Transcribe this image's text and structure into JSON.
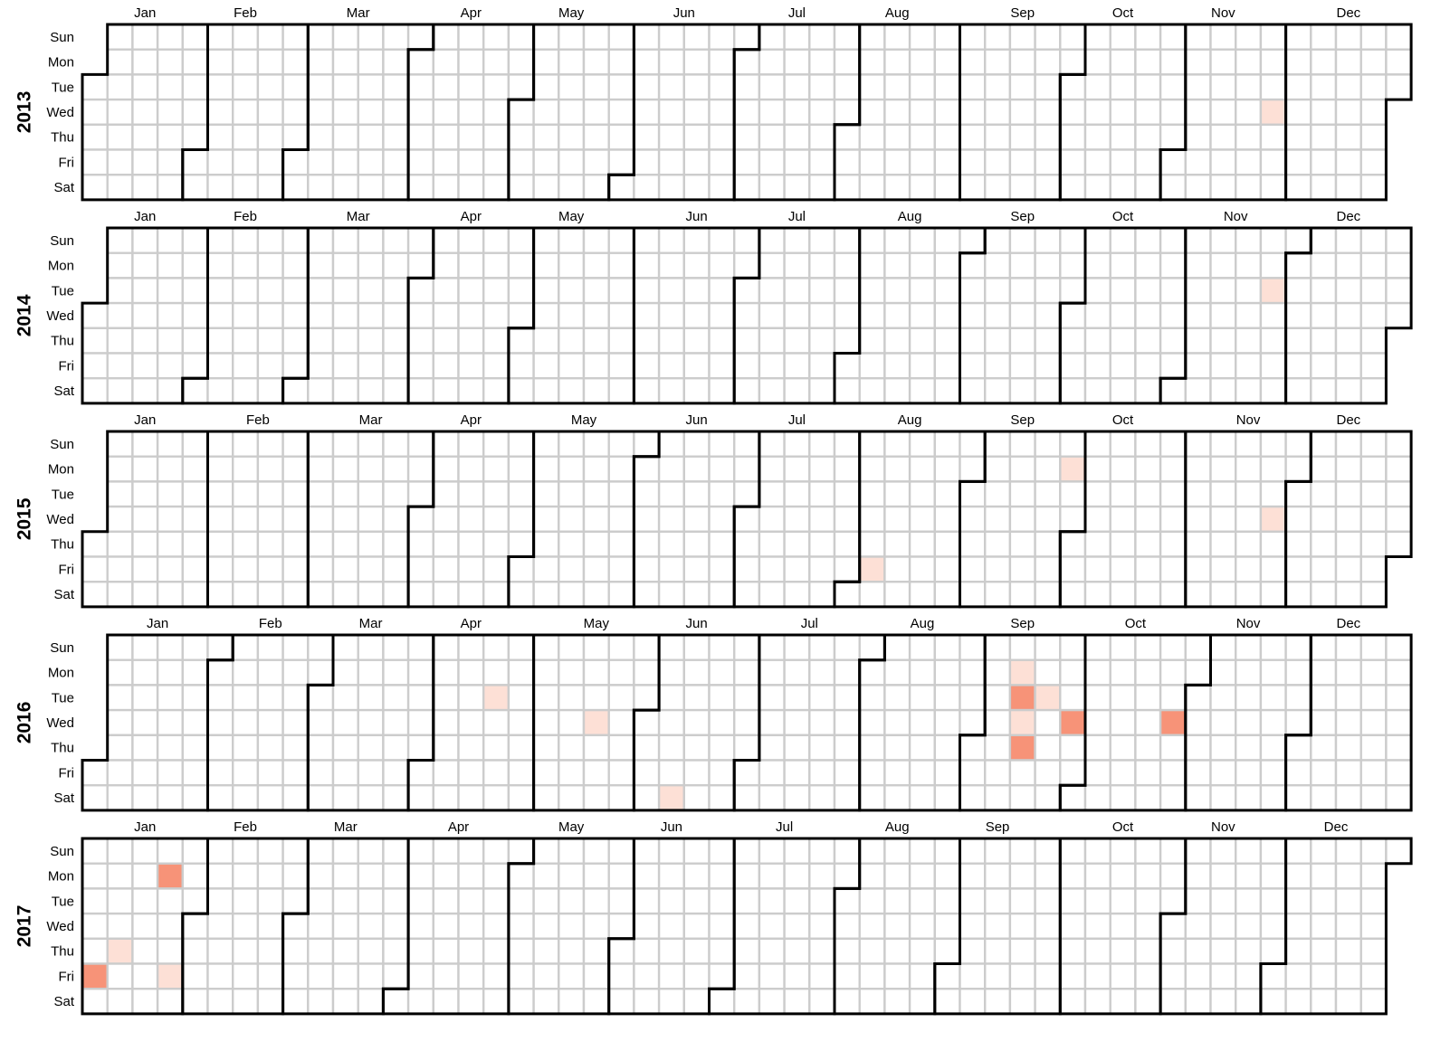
{
  "chart_data": {
    "type": "heatmap",
    "layout": "calendar",
    "years": [
      "2013",
      "2014",
      "2015",
      "2016",
      "2017"
    ],
    "weekday_labels": [
      "Sun",
      "Mon",
      "Tue",
      "Wed",
      "Thu",
      "Fri",
      "Sat"
    ],
    "month_labels": [
      "Jan",
      "Feb",
      "Mar",
      "Apr",
      "May",
      "Jun",
      "Jul",
      "Aug",
      "Sep",
      "Oct",
      "Nov",
      "Dec"
    ],
    "colors": {
      "empty": "#ffffff",
      "grid": "#cccccc",
      "month_border": "#000000",
      "levels": [
        "#fde0d6",
        "#f79378"
      ]
    },
    "values": [
      {
        "date": "2013-11-27",
        "level": 1
      },
      {
        "date": "2014-11-25",
        "level": 1
      },
      {
        "date": "2015-09-28",
        "level": 1
      },
      {
        "date": "2015-11-25",
        "level": 1
      },
      {
        "date": "2015-08-07",
        "level": 1
      },
      {
        "date": "2016-04-19",
        "level": 1
      },
      {
        "date": "2016-05-18",
        "level": 1
      },
      {
        "date": "2016-06-11",
        "level": 1
      },
      {
        "date": "2016-09-12",
        "level": 1
      },
      {
        "date": "2016-09-13",
        "level": 2
      },
      {
        "date": "2016-09-14",
        "level": 1
      },
      {
        "date": "2016-09-15",
        "level": 2
      },
      {
        "date": "2016-09-20",
        "level": 1
      },
      {
        "date": "2016-09-28",
        "level": 2
      },
      {
        "date": "2016-10-26",
        "level": 2
      },
      {
        "date": "2017-01-06",
        "level": 2
      },
      {
        "date": "2017-01-12",
        "level": 1
      },
      {
        "date": "2017-01-23",
        "level": 2
      },
      {
        "date": "2017-01-27",
        "level": 1
      }
    ]
  }
}
